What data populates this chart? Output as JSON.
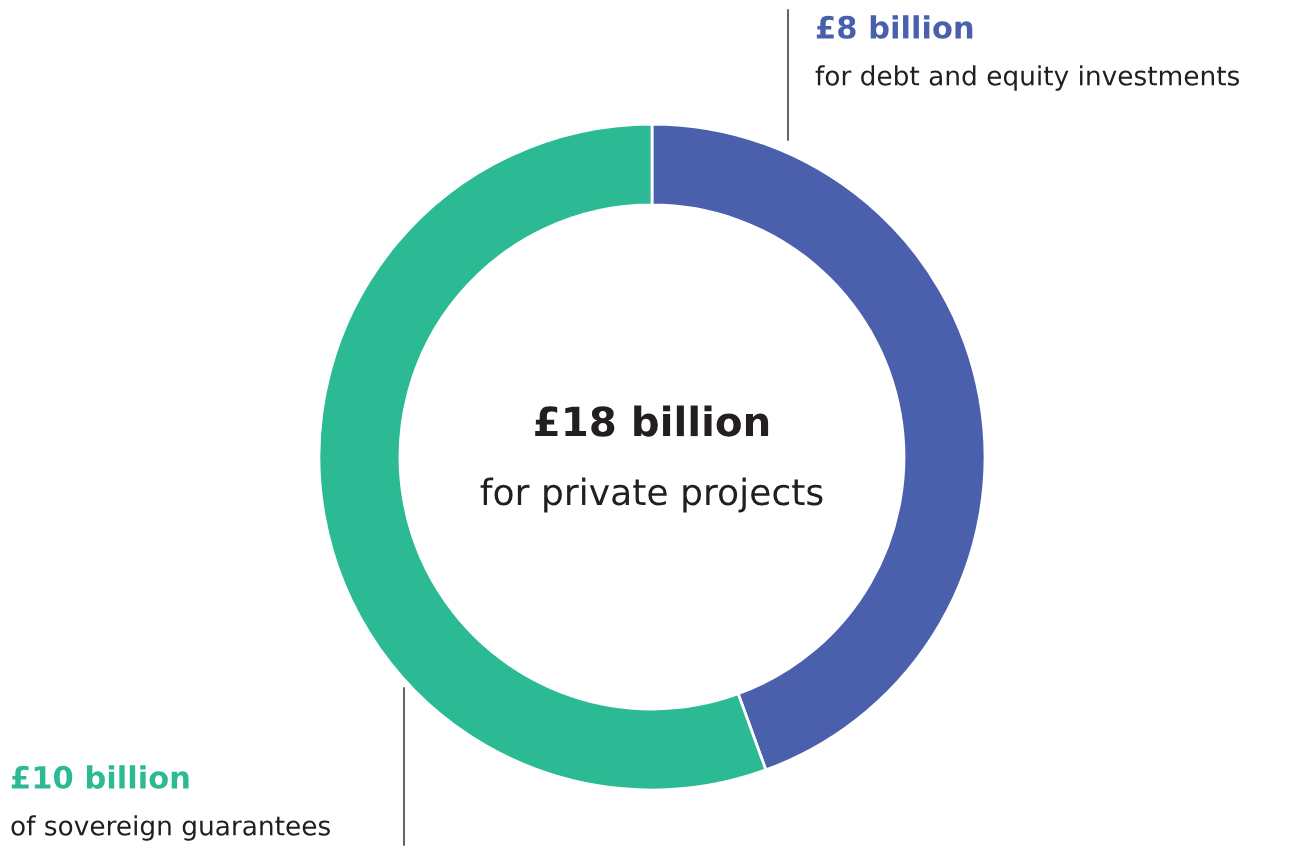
{
  "chart_data": {
    "type": "donut",
    "title": "£18 billion",
    "subtitle": "for private projects",
    "categories": [
      "for debt and equity investments",
      "of sovereign guarantees"
    ],
    "values": [
      8,
      10
    ],
    "value_labels": [
      "£8 billion",
      "£10 billion"
    ],
    "colors": [
      "#4a60ad",
      "#2bba93"
    ]
  }
}
